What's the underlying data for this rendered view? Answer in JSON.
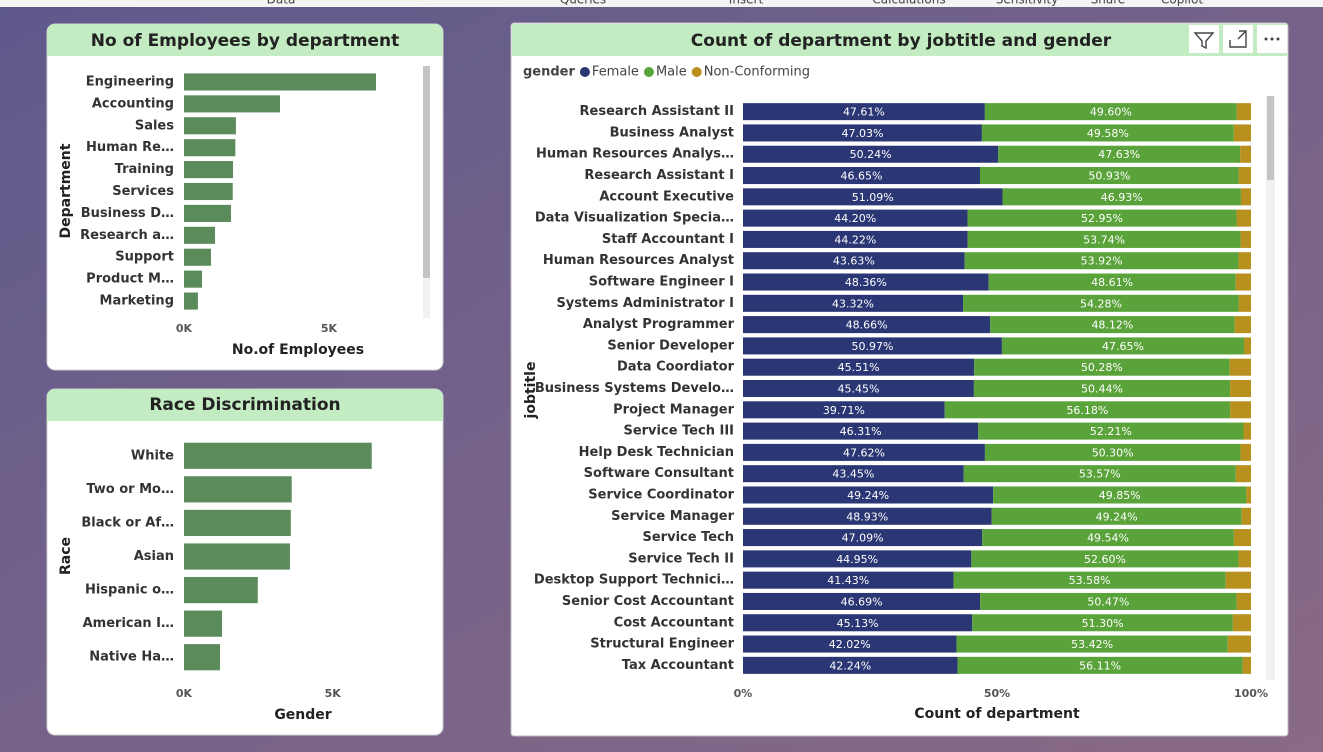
{
  "ribbon": [
    "Data",
    "Queries",
    "Insert",
    "Calculations",
    "Sensitivity",
    "Share",
    "Copilot"
  ],
  "chart_data": [
    {
      "type": "bar",
      "orientation": "horizontal",
      "title": "No of Employees by department",
      "categories": [
        "Engineering",
        "Accounting",
        "Sales",
        "Human Re…",
        "Training",
        "Services",
        "Business D…",
        "Research a…",
        "Support",
        "Product M…",
        "Marketing"
      ],
      "values": [
        6620,
        3310,
        1790,
        1770,
        1690,
        1680,
        1620,
        1070,
        930,
        620,
        480
      ],
      "color": "#5b8a5b",
      "xlim": [
        0,
        8000
      ],
      "xticks": [
        {
          "value": 0,
          "label": "0K"
        },
        {
          "value": 5000,
          "label": "5K"
        }
      ],
      "xlabel": "No.of Employees",
      "ylabel": "Department"
    },
    {
      "type": "bar",
      "orientation": "horizontal",
      "title": "Race Discrimination",
      "categories": [
        "White",
        "Two or Mo…",
        "Black or Af…",
        "Asian",
        "Hispanic o…",
        "American I…",
        "Native Ha…"
      ],
      "values": [
        6310,
        3620,
        3590,
        3560,
        2480,
        1280,
        1210
      ],
      "color": "#5b8a5b",
      "xlim": [
        0,
        8000
      ],
      "xticks": [
        {
          "value": 0,
          "label": "0K"
        },
        {
          "value": 5000,
          "label": "5K"
        }
      ],
      "xlabel": "Gender",
      "ylabel": "Race"
    },
    {
      "type": "stacked_bar",
      "orientation": "horizontal",
      "title": "Count of department by jobtitle and gender",
      "legend_title": "gender",
      "categories": [
        "Research Assistant II",
        "Business Analyst",
        "Human Resources Analys…",
        "Research Assistant I",
        "Account Executive",
        "Data Visualization Specia…",
        "Staff Accountant I",
        "Human Resources Analyst",
        "Software Engineer I",
        "Systems Administrator I",
        "Analyst Programmer",
        "Senior Developer",
        "Data Coordiator",
        "Business Systems Develo…",
        "Project Manager",
        "Service Tech III",
        "Help Desk Technician",
        "Software Consultant",
        "Service Coordinator",
        "Service Manager",
        "Service Tech",
        "Service Tech II",
        "Desktop Support Technici…",
        "Senior Cost Accountant",
        "Cost Accountant",
        "Structural Engineer",
        "Tax Accountant"
      ],
      "series": [
        {
          "name": "Female",
          "color": "#2b3674",
          "values": [
            47.61,
            47.03,
            50.24,
            46.65,
            51.09,
            44.2,
            44.22,
            43.63,
            48.36,
            43.32,
            48.66,
            50.97,
            45.51,
            45.45,
            39.71,
            46.31,
            47.62,
            43.45,
            49.24,
            48.93,
            47.09,
            44.95,
            41.43,
            46.69,
            45.13,
            42.02,
            42.24
          ],
          "value_labels": [
            "47.61%",
            "47.03%",
            "50.24%",
            "46.65%",
            "51.09%",
            "44.20%",
            "44.22%",
            "43.63%",
            "48.36%",
            "43.32%",
            "48.66%",
            "50.97%",
            "45.51%",
            "45.45%",
            "39.71%",
            "46.31%",
            "47.62%",
            "43.45%",
            "49.24%",
            "48.93%",
            "47.09%",
            "44.95%",
            "41.43%",
            "46.69%",
            "45.13%",
            "42.02%",
            "42.24%"
          ]
        },
        {
          "name": "Male",
          "color": "#5aa33a",
          "values": [
            49.6,
            49.58,
            47.63,
            50.93,
            46.93,
            52.95,
            53.74,
            53.92,
            48.61,
            54.28,
            48.12,
            47.65,
            50.28,
            50.44,
            56.18,
            52.21,
            50.3,
            53.57,
            49.85,
            49.24,
            49.54,
            52.6,
            53.58,
            50.47,
            51.3,
            53.42,
            56.11
          ],
          "value_labels": [
            "49.60%",
            "49.58%",
            "47.63%",
            "50.93%",
            "46.93%",
            "52.95%",
            "53.74%",
            "53.92%",
            "48.61%",
            "54.28%",
            "48.12%",
            "47.65%",
            "50.28%",
            "50.44%",
            "56.18%",
            "52.21%",
            "50.30%",
            "53.57%",
            "49.85%",
            "49.24%",
            "49.54%",
            "52.60%",
            "53.58%",
            "50.47%",
            "51.30%",
            "53.42%",
            "56.11%"
          ]
        },
        {
          "name": "Non-Conforming",
          "color": "#b8901e",
          "values": [
            2.79,
            3.39,
            2.13,
            2.42,
            1.98,
            2.85,
            2.04,
            2.45,
            3.03,
            2.4,
            3.22,
            1.38,
            4.21,
            4.11,
            4.11,
            1.48,
            2.08,
            2.98,
            0.91,
            1.83,
            3.37,
            2.45,
            4.99,
            2.84,
            3.57,
            4.56,
            1.65
          ]
        }
      ],
      "xlim": [
        0,
        100
      ],
      "xticks": [
        {
          "value": 0,
          "label": "0%"
        },
        {
          "value": 50,
          "label": "50%"
        },
        {
          "value": 100,
          "label": "100%"
        }
      ],
      "xlabel": "Count of department",
      "ylabel": "jobtitle"
    }
  ]
}
